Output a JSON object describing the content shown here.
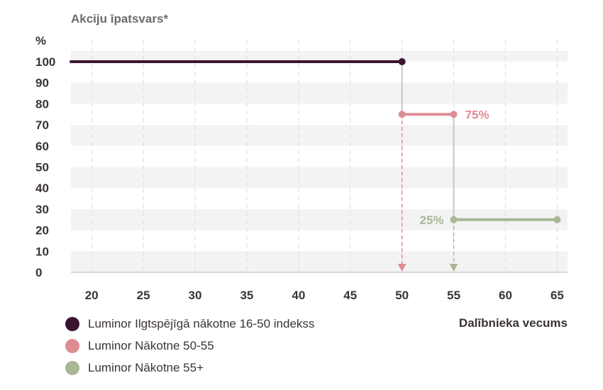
{
  "chart_data": {
    "type": "line",
    "ylabel": "Akciju īpatsvars*",
    "y_unit": "%",
    "xlabel": "Dalībnieka vecums",
    "ylim": [
      0,
      100
    ],
    "y_ticks": [
      "0",
      "10",
      "20",
      "30",
      "40",
      "50",
      "60",
      "70",
      "80",
      "90",
      "100"
    ],
    "xlim": [
      18,
      66
    ],
    "x_ticks": [
      "20",
      "25",
      "30",
      "35",
      "40",
      "45",
      "50",
      "55",
      "60",
      "65"
    ],
    "grid": "dashed vertical lines and alternating horizontal bands",
    "legend_position": "bottom-left",
    "series": [
      {
        "name": "Luminor Ilgtspējīgā nākotne 16-50 indekss",
        "color": "#3a1530",
        "x": [
          18,
          50
        ],
        "y": [
          100,
          100
        ]
      },
      {
        "name": "Luminor Nākotne 50-55",
        "color": "#de8c94",
        "x": [
          50,
          55
        ],
        "y": [
          75,
          75
        ]
      },
      {
        "name": "Luminor Nākotne 55+",
        "color": "#a8b896",
        "x": [
          55,
          65
        ],
        "y": [
          25,
          25
        ]
      }
    ],
    "annotations": [
      {
        "text": "75%",
        "x": 55,
        "y": 75,
        "color": "#de8c94",
        "side": "right"
      },
      {
        "text": "25%",
        "x": 55,
        "y": 25,
        "color": "#a8b896",
        "side": "left"
      }
    ],
    "connectors": [
      {
        "x": 50,
        "y_from": 100,
        "y_to": 75,
        "color": "#c8c4c4"
      },
      {
        "x": 55,
        "y_from": 75,
        "y_to": 25,
        "color": "#c8c4c4"
      }
    ],
    "arrows": [
      {
        "x": 50,
        "y_from": 75,
        "y_to": 0,
        "color": "#de8c94"
      },
      {
        "x": 55,
        "y_from": 25,
        "y_to": 0,
        "color": "#a8b896"
      }
    ]
  }
}
